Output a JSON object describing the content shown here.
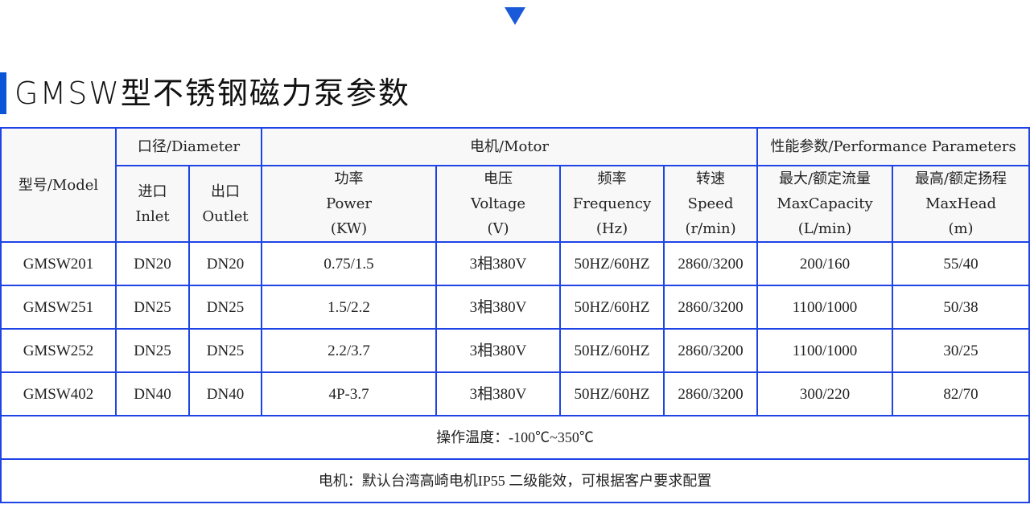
{
  "title": "GMSW型不锈钢磁力泵参数",
  "colors": {
    "accent": "#0a55d6",
    "border": "#1e44e6",
    "header_bg": "#f9f8f8"
  },
  "header": {
    "model": "型号/Model",
    "diameter": "口径/Diameter",
    "motor": "电机/Motor",
    "performance": "性能参数/Performance Parameters",
    "inlet": [
      "进口",
      "Inlet"
    ],
    "outlet": [
      "出口",
      "Outlet"
    ],
    "power": [
      "功率",
      "Power",
      "(KW)"
    ],
    "voltage": [
      "电压",
      "Voltage",
      "(V)"
    ],
    "frequency": [
      "频率",
      "Frequency",
      "(Hz)"
    ],
    "speed": [
      "转速",
      "Speed",
      "(r/min)"
    ],
    "capacity": [
      "最大/额定流量",
      "MaxCapacity",
      "(L/min)"
    ],
    "head": [
      "最高/额定扬程",
      "MaxHead",
      "(m)"
    ]
  },
  "rows": [
    [
      "GMSW201",
      "DN20",
      "DN20",
      "0.75/1.5",
      "3相380V",
      "50HZ/60HZ",
      "2860/3200",
      "200/160",
      "55/40"
    ],
    [
      "GMSW251",
      "DN25",
      "DN25",
      "1.5/2.2",
      "3相380V",
      "50HZ/60HZ",
      "2860/3200",
      "1100/1000",
      "50/38"
    ],
    [
      "GMSW252",
      "DN25",
      "DN25",
      "2.2/3.7",
      "3相380V",
      "50HZ/60HZ",
      "2860/3200",
      "1100/1000",
      "30/25"
    ],
    [
      "GMSW402",
      "DN40",
      "DN40",
      "4P-3.7",
      "3相380V",
      "50HZ/60HZ",
      "2860/3200",
      "300/220",
      "82/70"
    ]
  ],
  "notes": {
    "temperature": "操作温度：-100℃~350℃",
    "motor": "电机：默认台湾高崎电机IP55 二级能效，可根据客户要求配置"
  }
}
